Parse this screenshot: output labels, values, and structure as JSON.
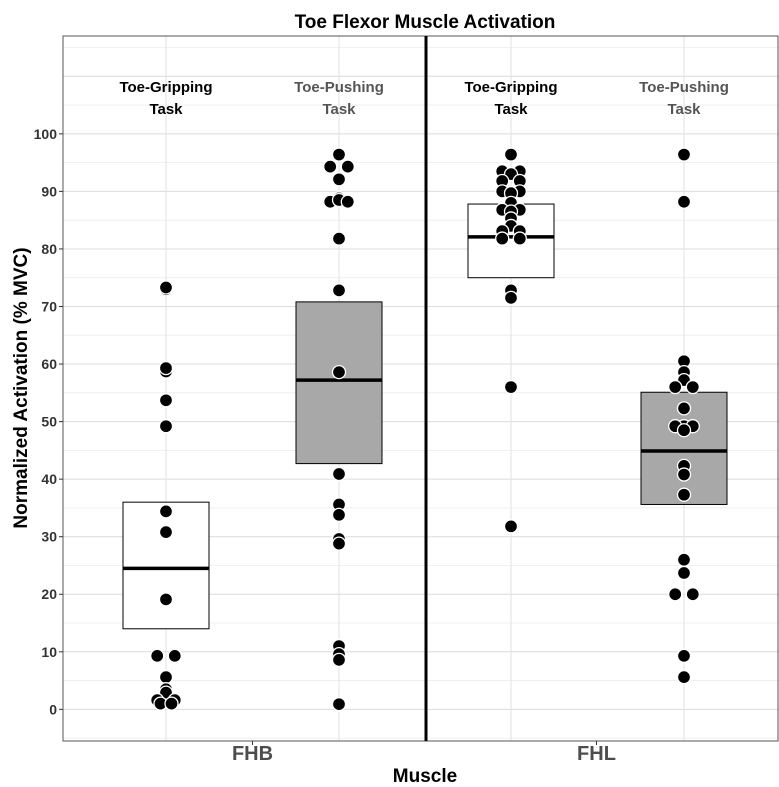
{
  "chart_data": {
    "type": "box",
    "title": "Toe Flexor Muscle Activation",
    "xlabel": "Muscle",
    "ylabel": "Normalized Activation (% MVC)",
    "ylim": [
      -5.5,
      117
    ],
    "yticks": [
      "0",
      "10",
      "20",
      "30",
      "40",
      "50",
      "60",
      "70",
      "80",
      "90",
      "100"
    ],
    "categories": [
      "FHB",
      "FHL"
    ],
    "condition_labels": [
      {
        "line1": "Toe-Gripping",
        "line2": "Task",
        "color": "#000000"
      },
      {
        "line1": "Toe-Pushing",
        "line2": "Task",
        "color": "#555555"
      },
      {
        "line1": "Toe-Gripping",
        "line2": "Task",
        "color": "#000000"
      },
      {
        "line1": "Toe-Pushing",
        "line2": "Task",
        "color": "#555555"
      }
    ],
    "grid": true,
    "groups": [
      {
        "muscle": "FHB",
        "task": "Toe-Gripping Task",
        "fill": "#ffffff",
        "box": {
          "q1": 14,
          "median": 24.5,
          "q3": 36
        },
        "points": [
          [
            0,
            73
          ],
          [
            0,
            73.3
          ],
          [
            0,
            58.7
          ],
          [
            0,
            59.3
          ],
          [
            0,
            53.7
          ],
          [
            0,
            49.2
          ],
          [
            0,
            34.4
          ],
          [
            0,
            30.8
          ],
          [
            0,
            19.1
          ],
          [
            -0.4,
            9.3
          ],
          [
            0.4,
            9.3
          ],
          [
            0,
            5.6
          ],
          [
            0,
            3.5
          ],
          [
            0,
            2.9
          ],
          [
            -0.4,
            1.6
          ],
          [
            0.4,
            1.6
          ],
          [
            -0.25,
            1
          ],
          [
            0.25,
            1
          ]
        ]
      },
      {
        "muscle": "FHB",
        "task": "Toe-Pushing Task",
        "fill": "#a8a8a8",
        "box": {
          "q1": 42.7,
          "median": 57.2,
          "q3": 70.8
        },
        "points": [
          [
            0,
            96.4
          ],
          [
            -0.4,
            94.3
          ],
          [
            0.4,
            94.3
          ],
          [
            0,
            92.1
          ],
          [
            0,
            88.8
          ],
          [
            -0.4,
            88.2
          ],
          [
            0,
            88.5
          ],
          [
            0.4,
            88.2
          ],
          [
            0,
            81.8
          ],
          [
            0,
            72.8
          ],
          [
            0,
            58.6
          ],
          [
            0,
            40.9
          ],
          [
            0,
            35.6
          ],
          [
            0,
            33.8
          ],
          [
            0,
            29.6
          ],
          [
            0,
            28.8
          ],
          [
            0,
            11
          ],
          [
            0,
            9.6
          ],
          [
            0,
            8.6
          ],
          [
            0,
            0.9
          ]
        ]
      },
      {
        "muscle": "FHL",
        "task": "Toe-Gripping Task",
        "fill": "#ffffff",
        "box": {
          "q1": 75,
          "median": 82.1,
          "q3": 87.8
        },
        "points": [
          [
            0,
            96.4
          ],
          [
            -0.4,
            93.5
          ],
          [
            0.4,
            93.5
          ],
          [
            0,
            93
          ],
          [
            -0.4,
            91.8
          ],
          [
            0.4,
            91.8
          ],
          [
            -0.4,
            90
          ],
          [
            0.4,
            90
          ],
          [
            0,
            89.7
          ],
          [
            0,
            88
          ],
          [
            -0.4,
            86.8
          ],
          [
            0.4,
            86.8
          ],
          [
            0,
            86.5
          ],
          [
            0,
            85.3
          ],
          [
            0,
            84
          ],
          [
            -0.4,
            83.1
          ],
          [
            0.4,
            83.1
          ],
          [
            -0.4,
            81.8
          ],
          [
            0.4,
            81.8
          ],
          [
            0,
            72.8
          ],
          [
            0,
            71.5
          ],
          [
            0,
            56
          ],
          [
            0,
            31.8
          ]
        ]
      },
      {
        "muscle": "FHL",
        "task": "Toe-Pushing Task",
        "fill": "#a8a8a8",
        "box": {
          "q1": 35.6,
          "median": 44.9,
          "q3": 55.1
        },
        "points": [
          [
            0,
            96.4
          ],
          [
            0,
            88.2
          ],
          [
            0,
            60.5
          ],
          [
            0,
            58.6
          ],
          [
            0,
            57.2
          ],
          [
            -0.4,
            56
          ],
          [
            0.4,
            56
          ],
          [
            0,
            52.3
          ],
          [
            0,
            49.2
          ],
          [
            -0.4,
            49.2
          ],
          [
            0.4,
            49.2
          ],
          [
            0,
            48.5
          ],
          [
            0,
            42.3
          ],
          [
            0,
            40.8
          ],
          [
            0,
            37.3
          ],
          [
            0,
            26
          ],
          [
            0,
            23.7
          ],
          [
            -0.4,
            20
          ],
          [
            0.4,
            20
          ],
          [
            0,
            9.3
          ],
          [
            0,
            5.6
          ]
        ]
      }
    ]
  }
}
